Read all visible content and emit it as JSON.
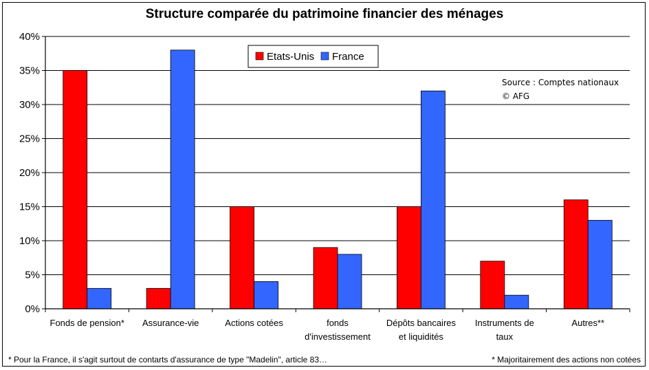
{
  "chart_data": {
    "type": "bar",
    "title": "Structure comparée du patrimoine financier des ménages",
    "categories": [
      [
        "Fonds de pension*"
      ],
      [
        "Assurance-vie"
      ],
      [
        "Actions cotées"
      ],
      [
        "fonds",
        "d'investissement"
      ],
      [
        "Dépôts bancaires",
        "et liquidités"
      ],
      [
        "Instruments de",
        "taux"
      ],
      [
        "Autres**"
      ]
    ],
    "series": [
      {
        "name": "Etats-Unis",
        "color": "#ff0000",
        "values": [
          35,
          3,
          15,
          9,
          15,
          7,
          16
        ]
      },
      {
        "name": "France",
        "color": "#3366ff",
        "values": [
          3,
          38,
          4,
          8,
          32,
          2,
          13
        ]
      }
    ],
    "ylim": [
      0,
      40
    ],
    "yticks": [
      "0%",
      "5%",
      "10%",
      "15%",
      "20%",
      "25%",
      "30%",
      "35%",
      "40%"
    ],
    "grid": true,
    "legend_position": "top-center",
    "source_lines": [
      "Source : Comptes nationaux",
      "© AFG"
    ],
    "footnote_left": "* Pour la France, il s'agit surtout de contarts d'assurance de type \"Madelin\", article 83…",
    "footnote_right": "* Majoritairement des actions non cotées"
  }
}
